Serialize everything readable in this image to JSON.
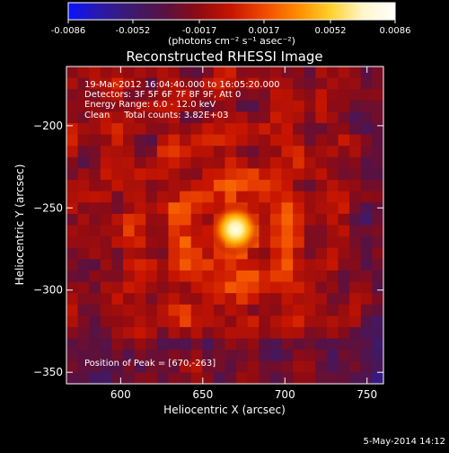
{
  "colorbar": {
    "tick_labels": [
      "-0.0086",
      "-0.0052",
      "-0.0017",
      "0.0017",
      "0.0052",
      "0.0086"
    ],
    "tick_values": [
      -0.0086,
      -0.0052,
      -0.0017,
      0.0017,
      0.0052,
      0.0086
    ],
    "range": [
      -0.0086,
      0.0086
    ],
    "unit_label": "(photons cm⁻² s⁻¹ asec⁻²)",
    "colormap": [
      "#0a12ff",
      "#2b19a6",
      "#3e1a6a",
      "#5a1140",
      "#8f0b12",
      "#c81500",
      "#f04a00",
      "#ff8a00",
      "#ffcf2a",
      "#fff6c8",
      "#ffffff"
    ]
  },
  "title": "Reconstructed RHESSI Image",
  "info": {
    "line1": "19-Mar-2012 16:04:40.000 to 16:05:20.000",
    "line2": "Detectors: 3F 5F 6F 7F 8F 9F, Att 0",
    "line3": "Energy Range: 6.0 - 12.0 keV",
    "line4": "Clean     Total counts: 3.82E+03",
    "peak": "Position of Peak = [670,-263]"
  },
  "axes": {
    "x_label": "Heliocentric X (arcsec)",
    "y_label": "Heliocentric Y (arcsec)",
    "x_range": [
      567,
      760
    ],
    "y_range": [
      -357,
      -164
    ],
    "x_ticks": [
      600,
      650,
      700,
      750
    ],
    "y_ticks": [
      -200,
      -250,
      -300,
      -350
    ],
    "x_tick_labels": [
      "600",
      "650",
      "700",
      "750"
    ],
    "y_tick_labels": [
      "−200",
      "−250",
      "−300",
      "−350"
    ]
  },
  "image": {
    "peak_position": [
      670,
      -263
    ],
    "grid": 28
  },
  "footer_date": "5-May-2014 14:12"
}
